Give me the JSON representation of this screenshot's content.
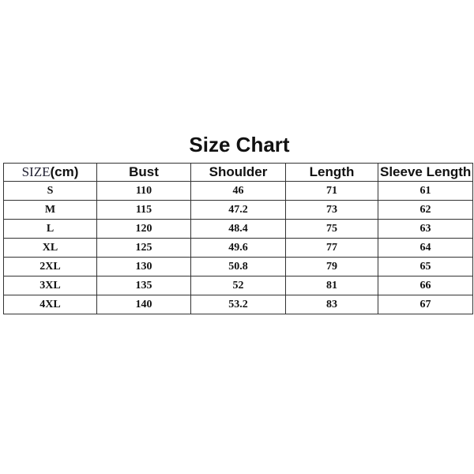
{
  "title": "Size Chart",
  "table": {
    "headers": {
      "size_prefix": "SIZE",
      "size_suffix": "(cm)",
      "bust": "Bust",
      "shoulder": "Shoulder",
      "length": "Length",
      "sleeve": "Sleeve Length"
    },
    "rows": [
      [
        "S",
        "110",
        "46",
        "71",
        "61"
      ],
      [
        "M",
        "115",
        "47.2",
        "73",
        "62"
      ],
      [
        "L",
        "120",
        "48.4",
        "75",
        "63"
      ],
      [
        "XL",
        "125",
        "49.6",
        "77",
        "64"
      ],
      [
        "2XL",
        "130",
        "50.8",
        "79",
        "65"
      ],
      [
        "3XL",
        "135",
        "52",
        "81",
        "66"
      ],
      [
        "4XL",
        "140",
        "53.2",
        "83",
        "67"
      ]
    ]
  }
}
